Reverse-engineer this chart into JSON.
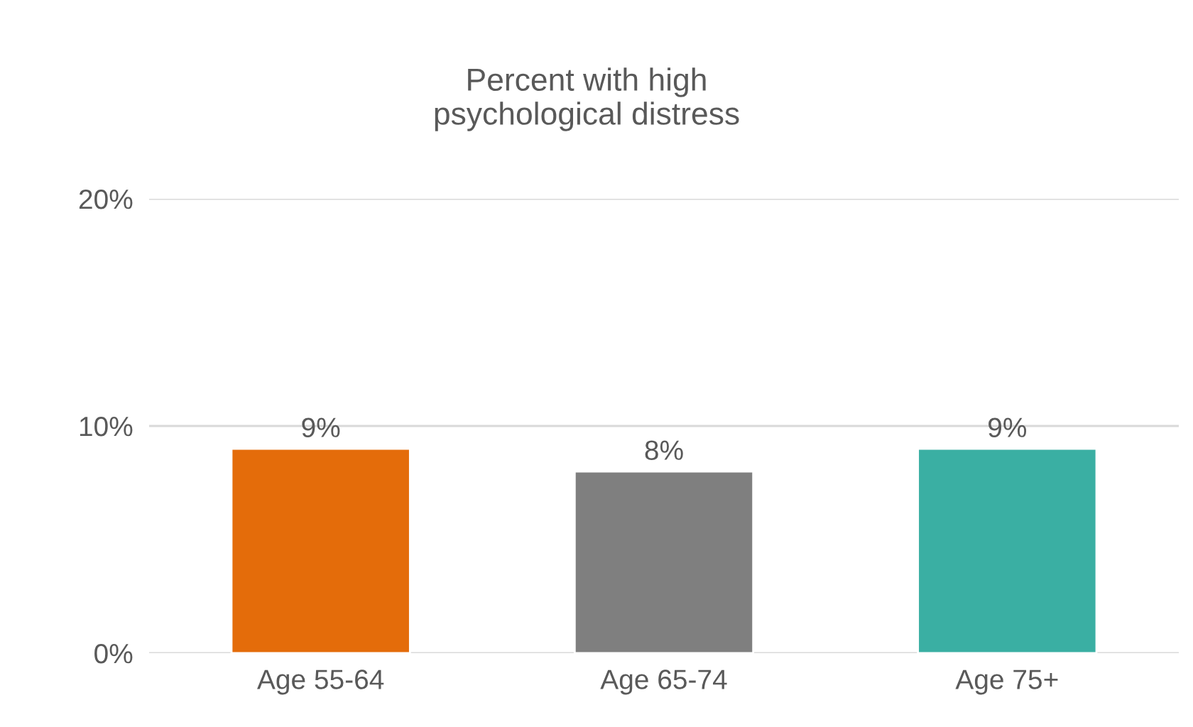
{
  "chart_data": {
    "type": "bar",
    "title": "Percent with high\npsychological distress",
    "categories": [
      "Age 55-64",
      "Age 65-74",
      "Age 75+"
    ],
    "values": [
      9,
      8,
      9
    ],
    "colors": [
      "#e46c0a",
      "#7f7f7f",
      "#3aafa3"
    ],
    "value_labels": [
      "9%",
      "8%",
      "9%"
    ],
    "ylim": [
      0,
      20
    ],
    "yticks": [
      {
        "value": 0,
        "label": "0%"
      },
      {
        "value": 10,
        "label": "10%"
      },
      {
        "value": 20,
        "label": "20%"
      }
    ],
    "grid": "y"
  }
}
